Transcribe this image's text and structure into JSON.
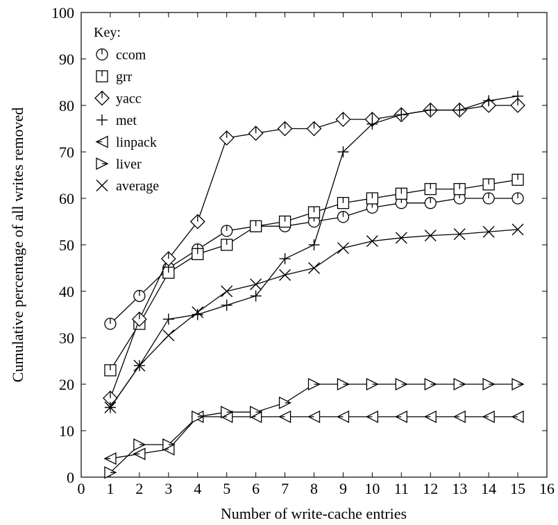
{
  "chart_data": {
    "type": "line",
    "title": "",
    "xlabel": "Number of write-cache entries",
    "ylabel": "Cumulative percentage of all writes removed",
    "xlim": [
      0,
      16
    ],
    "ylim": [
      0,
      100
    ],
    "xticks": [
      "0",
      "1",
      "2",
      "3",
      "4",
      "5",
      "6",
      "7",
      "8",
      "9",
      "10",
      "11",
      "12",
      "13",
      "14",
      "15",
      "16"
    ],
    "yticks": [
      "0",
      "10",
      "20",
      "30",
      "40",
      "50",
      "60",
      "70",
      "80",
      "90",
      "100"
    ],
    "grid": false,
    "legend": {
      "title": "Key:",
      "placement": "top-left"
    },
    "x": [
      1,
      2,
      3,
      4,
      5,
      6,
      7,
      8,
      9,
      10,
      11,
      12,
      13,
      14,
      15
    ],
    "series": [
      {
        "name": "ccom",
        "marker": "circle",
        "values": [
          33,
          39,
          45,
          49,
          53,
          54,
          54,
          55,
          56,
          58,
          59,
          59,
          60,
          60,
          60
        ]
      },
      {
        "name": "grr",
        "marker": "square",
        "values": [
          23,
          33,
          44,
          48,
          50,
          54,
          55,
          57,
          59,
          60,
          61,
          62,
          62,
          63,
          64
        ]
      },
      {
        "name": "yacc",
        "marker": "diamond",
        "values": [
          17,
          34,
          47,
          55,
          73,
          74,
          75,
          75,
          77,
          77,
          78,
          79,
          79,
          80,
          80
        ]
      },
      {
        "name": "met",
        "marker": "plus",
        "values": [
          15,
          24,
          34,
          35,
          37,
          39,
          47,
          50,
          70,
          76,
          78,
          79,
          79,
          81,
          82
        ]
      },
      {
        "name": "linpack",
        "marker": "triangle-left",
        "values": [
          4,
          5,
          6,
          13,
          13,
          13,
          13,
          13,
          13,
          13,
          13,
          13,
          13,
          13,
          13
        ]
      },
      {
        "name": "liver",
        "marker": "triangle-right",
        "values": [
          1,
          7,
          7,
          13,
          14,
          14,
          16,
          20,
          20,
          20,
          20,
          20,
          20,
          20,
          20
        ]
      },
      {
        "name": "average",
        "marker": "cross",
        "values": [
          15,
          24,
          30.5,
          35.5,
          40,
          41.5,
          43.5,
          45,
          49.3,
          50.8,
          51.5,
          52,
          52.3,
          52.8,
          53.3
        ]
      }
    ]
  }
}
